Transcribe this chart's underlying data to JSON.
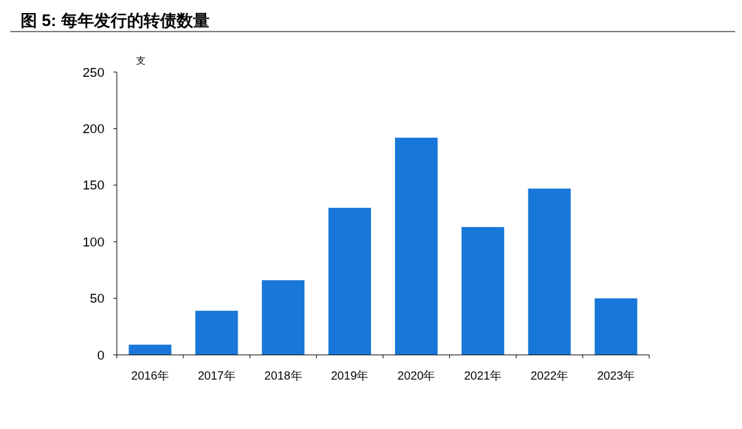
{
  "chart_data": {
    "type": "bar",
    "title": "图 5:  每年发行的转债数量",
    "ylabel": "支",
    "categories": [
      "2016年",
      "2017年",
      "2018年",
      "2019年",
      "2020年",
      "2021年",
      "2022年",
      "2023年"
    ],
    "values": [
      9,
      39,
      66,
      130,
      192,
      113,
      147,
      50
    ],
    "color": "#1877d8",
    "ylim": [
      0,
      250
    ],
    "yticks": [
      0,
      50,
      100,
      150,
      200,
      250
    ],
    "grid": false
  }
}
